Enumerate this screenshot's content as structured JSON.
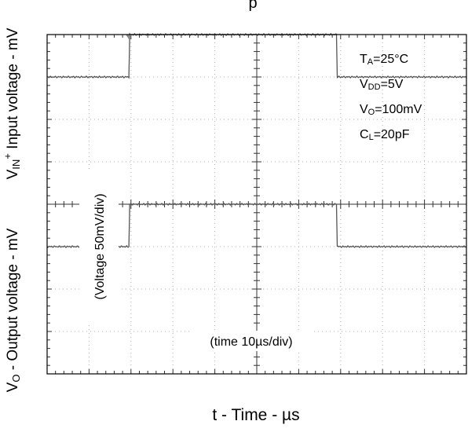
{
  "chart_data": {
    "type": "line",
    "title_fragment": "p",
    "xlabel": "t - Time - µs",
    "ylabel_upper": {
      "prefix": "V",
      "sub": "IN",
      "sup": "+",
      "suffix": " Input voltage - mV"
    },
    "ylabel_lower": {
      "prefix": "V",
      "sub": "O",
      "suffix": " - Output voltage - mV"
    },
    "x_divisions": 10,
    "y_divisions": 8,
    "xlim": [
      0,
      10
    ],
    "ylim": [
      0,
      8
    ],
    "grid": "dotted",
    "annotations": {
      "voltage_scale": "(Voltage 50mV/div)",
      "time_scale": "(time 10µs/div)"
    },
    "conditions": [
      {
        "prefix": "T",
        "sub": "A",
        "suffix": "=25°C"
      },
      {
        "prefix": "V",
        "sub": "DD",
        "suffix": "=5V"
      },
      {
        "prefix": "V",
        "sub": "O",
        "suffix": "=100mV"
      },
      {
        "prefix": "C",
        "sub": "L",
        "suffix": "=20pF"
      }
    ],
    "series": [
      {
        "color": "#555555",
        "x": [
          0,
          1.95,
          1.97,
          6.9,
          6.92,
          10
        ],
        "y": [
          7.0,
          7.0,
          8.0,
          8.0,
          7.0,
          7.0
        ]
      },
      {
        "color": "#555555",
        "x": [
          0,
          1.95,
          1.97,
          6.9,
          6.92,
          10
        ],
        "y": [
          3.0,
          3.0,
          4.0,
          4.0,
          3.0,
          3.0
        ]
      }
    ],
    "trigger_marker_x": 1.95
  }
}
